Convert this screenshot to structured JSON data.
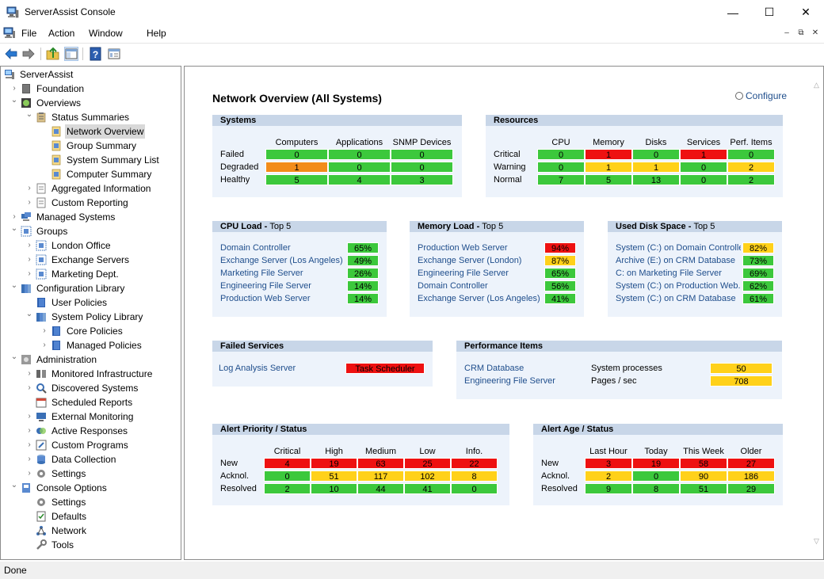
{
  "window": {
    "title": "ServerAssist Console",
    "minimize_glyph": "—",
    "maximize_glyph": "☐",
    "close_glyph": "✕"
  },
  "menu": {
    "items": [
      "File",
      "Action",
      "Window",
      "Help"
    ],
    "mdi_min": "–",
    "mdi_restore": "⧉",
    "mdi_close": "✕"
  },
  "toolbar": {
    "icons": [
      "back-arrow-icon",
      "forward-arrow-icon",
      "up-folder-icon",
      "show-hide-tree-icon",
      "help-icon",
      "properties-icon"
    ]
  },
  "tree": {
    "nodes": [
      {
        "label": "ServerAssist",
        "depth": 0,
        "chevron": "",
        "icon": "computer-icon"
      },
      {
        "label": "Foundation",
        "depth": 1,
        "chevron": "›",
        "icon": "book-icon"
      },
      {
        "label": "Overviews",
        "depth": 1,
        "chevron": "⌄",
        "icon": "overview-icon"
      },
      {
        "label": "Status Summaries",
        "depth": 2,
        "chevron": "⌄",
        "icon": "clipboard-icon"
      },
      {
        "label": "Network Overview",
        "depth": 3,
        "chevron": "",
        "icon": "report-icon",
        "selected": true
      },
      {
        "label": "Group Summary",
        "depth": 3,
        "chevron": "",
        "icon": "report-icon"
      },
      {
        "label": "System Summary List",
        "depth": 3,
        "chevron": "",
        "icon": "report-icon"
      },
      {
        "label": "Computer Summary",
        "depth": 3,
        "chevron": "",
        "icon": "report-icon"
      },
      {
        "label": "Aggregated Information",
        "depth": 2,
        "chevron": "›",
        "icon": "document-icon"
      },
      {
        "label": "Custom Reporting",
        "depth": 2,
        "chevron": "›",
        "icon": "document-icon"
      },
      {
        "label": "Managed Systems",
        "depth": 1,
        "chevron": "›",
        "icon": "computer-group-icon"
      },
      {
        "label": "Groups",
        "depth": 1,
        "chevron": "⌄",
        "icon": "group-icon"
      },
      {
        "label": "London Office",
        "depth": 2,
        "chevron": "›",
        "icon": "group-icon"
      },
      {
        "label": "Exchange Servers",
        "depth": 2,
        "chevron": "›",
        "icon": "group-icon"
      },
      {
        "label": "Marketing Dept.",
        "depth": 2,
        "chevron": "›",
        "icon": "group-icon"
      },
      {
        "label": "Configuration Library",
        "depth": 1,
        "chevron": "⌄",
        "icon": "library-icon"
      },
      {
        "label": "User Policies",
        "depth": 2,
        "chevron": "",
        "icon": "policy-book-icon"
      },
      {
        "label": "System Policy Library",
        "depth": 2,
        "chevron": "⌄",
        "icon": "library-icon"
      },
      {
        "label": "Core Policies",
        "depth": 3,
        "chevron": "›",
        "icon": "policy-book-icon"
      },
      {
        "label": "Managed Policies",
        "depth": 3,
        "chevron": "›",
        "icon": "policy-book-icon"
      },
      {
        "label": "Administration",
        "depth": 1,
        "chevron": "⌄",
        "icon": "admin-icon"
      },
      {
        "label": "Monitored Infrastructure",
        "depth": 2,
        "chevron": "›",
        "icon": "infrastructure-icon"
      },
      {
        "label": "Discovered Systems",
        "depth": 2,
        "chevron": "›",
        "icon": "discovery-icon"
      },
      {
        "label": "Scheduled Reports",
        "depth": 2,
        "chevron": "",
        "icon": "calendar-icon"
      },
      {
        "label": "External Monitoring",
        "depth": 2,
        "chevron": "›",
        "icon": "monitor-icon"
      },
      {
        "label": "Active Responses",
        "depth": 2,
        "chevron": "›",
        "icon": "responses-icon"
      },
      {
        "label": "Custom Programs",
        "depth": 2,
        "chevron": "›",
        "icon": "program-icon"
      },
      {
        "label": "Data Collection",
        "depth": 2,
        "chevron": "›",
        "icon": "database-icon"
      },
      {
        "label": "Settings",
        "depth": 2,
        "chevron": "›",
        "icon": "settings-icon"
      },
      {
        "label": "Console Options",
        "depth": 1,
        "chevron": "⌄",
        "icon": "console-icon"
      },
      {
        "label": "Settings",
        "depth": 2,
        "chevron": "",
        "icon": "settings-icon"
      },
      {
        "label": "Defaults",
        "depth": 2,
        "chevron": "",
        "icon": "defaults-icon"
      },
      {
        "label": "Network",
        "depth": 2,
        "chevron": "",
        "icon": "network-icon"
      },
      {
        "label": "Tools",
        "depth": 2,
        "chevron": "",
        "icon": "wrench-icon"
      }
    ]
  },
  "page": {
    "title": "Network Overview (All Systems)",
    "configure_label": "Configure"
  },
  "systems": {
    "title": "Systems",
    "columns": [
      "Computers",
      "Applications",
      "SNMP Devices"
    ],
    "rows": [
      {
        "label": "Failed",
        "values": [
          "0",
          "0",
          "0"
        ],
        "colors": [
          "green",
          "green",
          "green"
        ]
      },
      {
        "label": "Degraded",
        "values": [
          "1",
          "0",
          "0"
        ],
        "colors": [
          "orange",
          "green",
          "green"
        ]
      },
      {
        "label": "Healthy",
        "values": [
          "5",
          "4",
          "3"
        ],
        "colors": [
          "green",
          "green",
          "green"
        ]
      }
    ]
  },
  "resources": {
    "title": "Resources",
    "columns": [
      "CPU",
      "Memory",
      "Disks",
      "Services",
      "Perf. Items"
    ],
    "rows": [
      {
        "label": "Critical",
        "values": [
          "0",
          "1",
          "0",
          "1",
          "0"
        ],
        "colors": [
          "green",
          "red",
          "green",
          "red",
          "green"
        ]
      },
      {
        "label": "Warning",
        "values": [
          "0",
          "1",
          "1",
          "0",
          "2"
        ],
        "colors": [
          "green",
          "yellow",
          "yellow",
          "green",
          "yellow"
        ]
      },
      {
        "label": "Normal",
        "values": [
          "7",
          "5",
          "13",
          "0",
          "2"
        ],
        "colors": [
          "green",
          "green",
          "green",
          "green",
          "green"
        ]
      }
    ]
  },
  "cpu_load": {
    "title": "CPU Load",
    "subtitle": "Top 5",
    "items": [
      {
        "name": "Domain Controller",
        "value": "65%",
        "color": "green"
      },
      {
        "name": "Exchange Server (Los Angeles)",
        "value": "49%",
        "color": "green"
      },
      {
        "name": "Marketing File Server",
        "value": "26%",
        "color": "green"
      },
      {
        "name": "Engineering File Server",
        "value": "14%",
        "color": "green"
      },
      {
        "name": "Production Web Server",
        "value": "14%",
        "color": "green"
      }
    ]
  },
  "memory_load": {
    "title": "Memory Load",
    "subtitle": "Top 5",
    "items": [
      {
        "name": "Production Web Server",
        "value": "94%",
        "color": "red"
      },
      {
        "name": "Exchange Server (London)",
        "value": "87%",
        "color": "yellow"
      },
      {
        "name": "Engineering File Server",
        "value": "65%",
        "color": "green"
      },
      {
        "name": "Domain Controller",
        "value": "56%",
        "color": "green"
      },
      {
        "name": "Exchange Server (Los Angeles)",
        "value": "41%",
        "color": "green"
      }
    ]
  },
  "disk_space": {
    "title": "Used Disk Space",
    "subtitle": "Top 5",
    "items": [
      {
        "name": "System (C:) on Domain Controller",
        "value": "82%",
        "color": "yellow"
      },
      {
        "name": "Archive (E:) on CRM Database",
        "value": "73%",
        "color": "green"
      },
      {
        "name": "C: on Marketing File Server",
        "value": "69%",
        "color": "green"
      },
      {
        "name": "System (C:) on Production Web...",
        "value": "62%",
        "color": "green"
      },
      {
        "name": "System (C:) on CRM Database",
        "value": "61%",
        "color": "green"
      }
    ]
  },
  "failed_services": {
    "title": "Failed Services",
    "items": [
      {
        "name": "Log Analysis Server",
        "service": "Task Scheduler",
        "color": "red"
      }
    ]
  },
  "performance_items": {
    "title": "Performance Items",
    "items": [
      {
        "system": "CRM Database",
        "metric": "System processes",
        "value": "50",
        "color": "yellow"
      },
      {
        "system": "Engineering File Server",
        "metric": "Pages / sec",
        "value": "708",
        "color": "yellow"
      }
    ]
  },
  "alert_priority": {
    "title": "Alert Priority / Status",
    "columns": [
      "Critical",
      "High",
      "Medium",
      "Low",
      "Info."
    ],
    "rows": [
      {
        "label": "New",
        "values": [
          "4",
          "19",
          "63",
          "25",
          "22"
        ],
        "colors": [
          "red",
          "red",
          "red",
          "red",
          "red"
        ]
      },
      {
        "label": "Acknol.",
        "values": [
          "0",
          "51",
          "117",
          "102",
          "8"
        ],
        "colors": [
          "green",
          "yellow",
          "yellow",
          "yellow",
          "yellow"
        ]
      },
      {
        "label": "Resolved",
        "values": [
          "2",
          "10",
          "44",
          "41",
          "0"
        ],
        "colors": [
          "green",
          "green",
          "green",
          "green",
          "green"
        ]
      }
    ]
  },
  "alert_age": {
    "title": "Alert Age / Status",
    "columns": [
      "Last Hour",
      "Today",
      "This Week",
      "Older"
    ],
    "rows": [
      {
        "label": "New",
        "values": [
          "3",
          "19",
          "58",
          "27"
        ],
        "colors": [
          "red",
          "red",
          "red",
          "red"
        ]
      },
      {
        "label": "Acknol.",
        "values": [
          "2",
          "0",
          "90",
          "186"
        ],
        "colors": [
          "yellow",
          "green",
          "yellow",
          "yellow"
        ]
      },
      {
        "label": "Resolved",
        "values": [
          "9",
          "8",
          "51",
          "29"
        ],
        "colors": [
          "green",
          "green",
          "green",
          "green"
        ]
      }
    ]
  },
  "status": {
    "text": "Done"
  },
  "colors": {
    "green": "#3cc83c",
    "red": "#ee1111",
    "orange": "#f28c1a",
    "yellow": "#ffd11a",
    "link": "#1f4e8c",
    "panel_header": "#c8d6e8",
    "panel_body": "#edf3fb"
  }
}
